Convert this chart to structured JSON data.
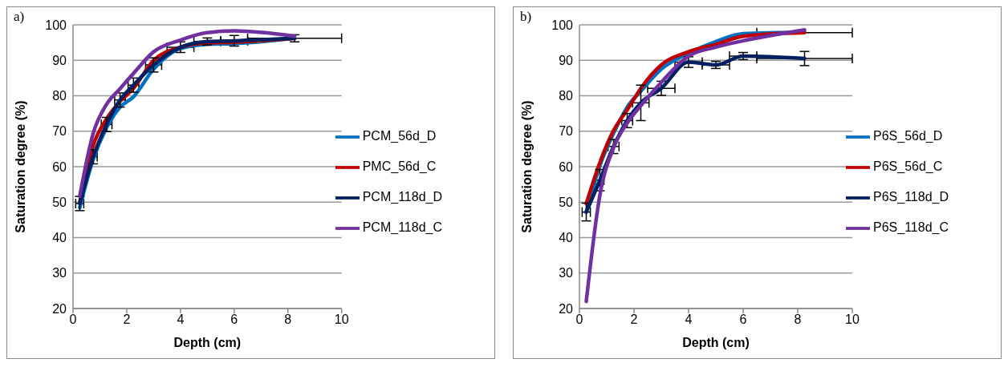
{
  "chart_data": [
    {
      "type": "line",
      "annotations": [
        "a)"
      ],
      "xlabel": "Depth (cm)",
      "ylabel": "Saturation degree (%)",
      "x": [
        0.25,
        0.75,
        1.25,
        1.75,
        2.25,
        3,
        4,
        5,
        6,
        8.25
      ],
      "xlim": [
        0,
        10
      ],
      "xticks": [
        0,
        2,
        4,
        6,
        8,
        10
      ],
      "ylim": [
        20,
        100
      ],
      "yticks": [
        20,
        30,
        40,
        50,
        60,
        70,
        80,
        90,
        100
      ],
      "grid": "y",
      "legend": "right",
      "marker": "none",
      "line_style": "solid",
      "series": [
        {
          "name": "PCM_56d_D",
          "color": "#0070c0",
          "values": [
            48.4,
            62,
            71,
            76.8,
            79.7,
            87.5,
            93.3,
            94.5,
            94.7,
            96.2
          ]
        },
        {
          "name": "PMC_56d_C",
          "color": "#c00000",
          "values": [
            50,
            66,
            73.5,
            78.4,
            82.1,
            90,
            93.7,
            94.9,
            95.1,
            96.2
          ]
        },
        {
          "name": "PCM_118d_D",
          "color": "#002060",
          "values": [
            49.6,
            62.8,
            71.9,
            78.8,
            83,
            88.7,
            93.7,
            95.3,
            95.5,
            96.2
          ],
          "errors": [
            2,
            2,
            2,
            2,
            2,
            2,
            1.5,
            1,
            1.5,
            1
          ],
          "xerrors": [
            0.15,
            0.15,
            0.2,
            0.2,
            0.2,
            0.3,
            0.5,
            0.5,
            0.5,
            1.75
          ]
        },
        {
          "name": "PCM_118d_C",
          "color": "#7030a0",
          "values": [
            51.7,
            69.4,
            77.6,
            82,
            86.3,
            92.4,
            95.7,
            97.8,
            98.3,
            96.8
          ]
        }
      ]
    },
    {
      "type": "line",
      "annotations": [
        "b)"
      ],
      "xlabel": "Depth (cm)",
      "ylabel": "Saturation degree (%)",
      "x": [
        0.25,
        0.75,
        1.25,
        1.75,
        2.25,
        3,
        4,
        5,
        6,
        8.25
      ],
      "xlim": [
        0,
        10
      ],
      "xticks": [
        0,
        2,
        4,
        6,
        8,
        10
      ],
      "ylim": [
        20,
        100
      ],
      "yticks": [
        20,
        30,
        40,
        50,
        60,
        70,
        80,
        90,
        100
      ],
      "grid": "y",
      "legend": "right",
      "marker": "none",
      "line_style": "solid",
      "series": [
        {
          "name": "P6S_56d_D",
          "color": "#0070c0",
          "values": [
            47.2,
            60.3,
            69.4,
            76.8,
            81.3,
            87.5,
            92,
            95.3,
            97.5,
            97.9
          ]
        },
        {
          "name": "P6S_56d_C",
          "color": "#c00000",
          "values": [
            49.6,
            61.2,
            70.2,
            76,
            82.1,
            88.7,
            92.4,
            94.5,
            96.8,
            97.8
          ],
          "xerrors": [
            null,
            null,
            null,
            null,
            null,
            null,
            null,
            null,
            null,
            1.75
          ]
        },
        {
          "name": "P6S_118d_D",
          "color": "#002060",
          "values": [
            47.2,
            56.2,
            65.7,
            73,
            78,
            82.1,
            89.5,
            88.7,
            91.2,
            90.5
          ],
          "errors": [
            2.5,
            3,
            2,
            2,
            5,
            2,
            1.5,
            1,
            1,
            2
          ],
          "xerrors": [
            0.15,
            0.15,
            0.2,
            0.2,
            0.3,
            0.5,
            0.5,
            0.5,
            0.5,
            1.75
          ]
        },
        {
          "name": "P6S_118d_C",
          "color": "#7030a0",
          "values": [
            22,
            52,
            65.3,
            72.3,
            77.2,
            83.8,
            91.2,
            93.7,
            95.5,
            98.6
          ]
        }
      ]
    }
  ]
}
